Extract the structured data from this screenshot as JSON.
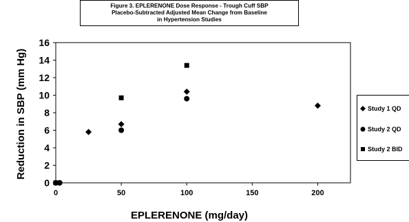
{
  "chart_data": {
    "type": "scatter",
    "title": "Figure 3. EPLERENONE Dose Response - Trough Cuff SBP\nPlacebo-Subtracted Adjusted Mean Change from Baseline\nin Hypertension Studies",
    "xlabel": "EPLERENONE (mg/day)",
    "ylabel": "Reduction in SBP (mm Hg)",
    "xlim": [
      0,
      225
    ],
    "ylim": [
      0,
      16
    ],
    "xticks": [
      0,
      50,
      100,
      150,
      200
    ],
    "yticks": [
      0,
      2,
      4,
      6,
      8,
      10,
      12,
      14,
      16
    ],
    "grid": false,
    "legend_position": "right",
    "series": [
      {
        "name": "Study 1 QD",
        "marker": "diamond",
        "x": [
          0,
          3,
          25,
          50,
          100,
          200
        ],
        "y": [
          0,
          0,
          5.8,
          6.7,
          10.4,
          8.8
        ]
      },
      {
        "name": "Study 2 QD",
        "marker": "circle",
        "x": [
          0,
          3,
          50,
          100
        ],
        "y": [
          0,
          0,
          6.0,
          9.6
        ]
      },
      {
        "name": "Study 2 BID",
        "marker": "square",
        "x": [
          0,
          50,
          100
        ],
        "y": [
          0,
          9.7,
          13.4
        ]
      }
    ]
  }
}
